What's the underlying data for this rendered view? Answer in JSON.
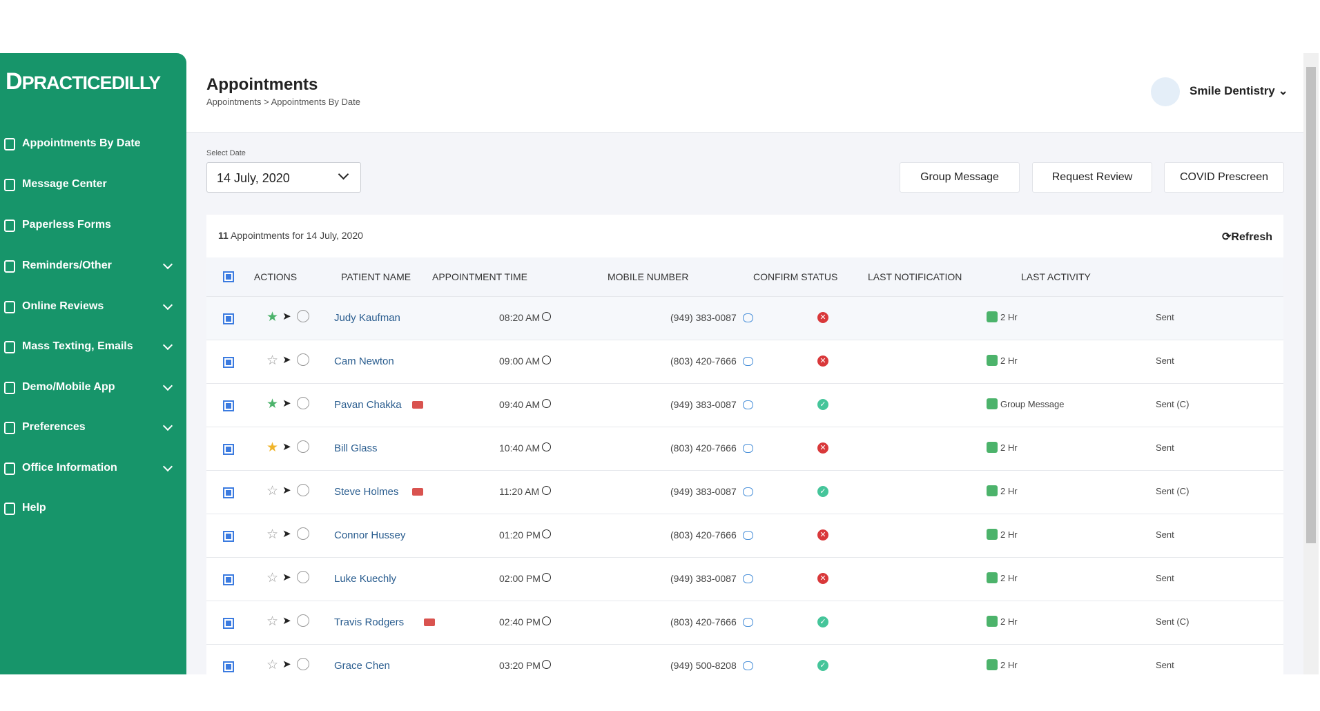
{
  "brand": "PRACTICEDILLY",
  "sidebar": [
    "Appointments By Date",
    "Message Center",
    "Paperless Forms",
    "Reminders/Other",
    "Online Reviews",
    "Mass Texting, Emails",
    "Demo/Mobile App",
    "Preferences",
    "Office Information",
    "Help"
  ],
  "header": {
    "title": "Appointments",
    "breadcrumb": "Appointments > Appointments By Date",
    "user": "Smile Dentistry"
  },
  "filter": {
    "label": "Select Date",
    "date": "14 July, 2020"
  },
  "buttons": [
    "Group Message",
    "Request Review",
    "COVID Prescreen"
  ],
  "table": {
    "count": "11",
    "count_text": "Appointments for 14 July, 2020",
    "refresh": "Refresh",
    "columns": [
      "ACTIONS",
      "PATIENT NAME",
      "APPOINTMENT TIME",
      "MOBILE NUMBER",
      "CONFIRM STATUS",
      "LAST NOTIFICATION",
      "LAST ACTIVITY"
    ],
    "rows": [
      [
        "Judy Kaufman",
        "08:20 AM",
        "(949) 383-0087",
        "2 Hr",
        "Sent"
      ],
      [
        "Cam Newton",
        "09:00 AM",
        "(803) 420-7666",
        "2 Hr",
        "Sent"
      ],
      [
        "Pavan Chakka",
        "09:40 AM",
        "(949) 383-0087",
        "Group Message",
        "Sent (C)"
      ],
      [
        "Bill Glass",
        "10:40 AM",
        "(803) 420-7666",
        "2 Hr",
        "Sent"
      ],
      [
        "Steve Holmes",
        "11:20 AM",
        "(949) 383-0087",
        "2 Hr",
        "Sent (C)"
      ],
      [
        "Connor Hussey",
        "01:20 PM",
        "(803) 420-7666",
        "2 Hr",
        "Sent"
      ],
      [
        "Luke Kuechly",
        "02:00 PM",
        "(949) 383-0087",
        "2 Hr",
        "Sent"
      ],
      [
        "Travis Rodgers",
        "02:40 PM",
        "(803) 420-7666",
        "2 Hr",
        "Sent (C)"
      ],
      [
        "Grace Chen",
        "03:20 PM",
        "(949) 500-8208",
        "2 Hr",
        "Sent"
      ]
    ]
  }
}
